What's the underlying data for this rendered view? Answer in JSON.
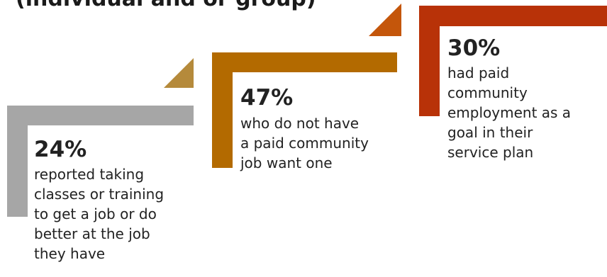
{
  "title": "(individual and or group)",
  "steps": [
    {
      "percent": "24%",
      "text": "reported taking\nclasses or training\nto get a job or do\nbetter at the job\nthey have",
      "color": "#a6a6a6"
    },
    {
      "percent": "47%",
      "text": "who do not have\na paid community\njob want one",
      "color": "#b36a00"
    },
    {
      "percent": "30%",
      "text": "had paid\ncommunity\nemployment as a\ngoal in their\nservice plan",
      "color": "#b83208"
    }
  ],
  "arrow_colors": [
    "#b58a3b",
    "#c4560b"
  ]
}
